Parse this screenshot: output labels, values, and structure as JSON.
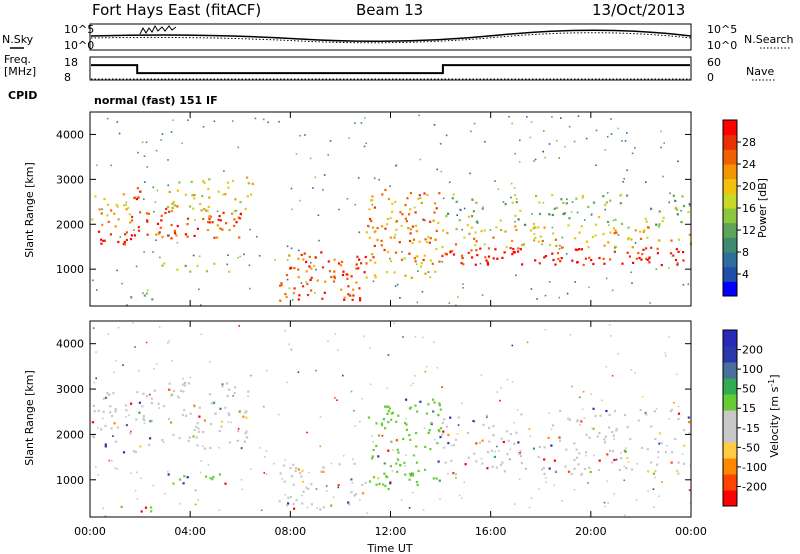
{
  "header": {
    "station": "Fort Hays East (fitACF)",
    "beam": "Beam 13",
    "date": "13/Oct/2013"
  },
  "noise_panel": {
    "left_label": "N.Sky",
    "right_label": "N.Search",
    "left_ticks": [
      "10^5",
      "10^0"
    ],
    "right_ticks": [
      "10^5",
      "10^0"
    ]
  },
  "freq_panel": {
    "left_label_1": "Freq.",
    "left_label_2": "[MHz]",
    "right_label": "Nave",
    "left_ticks": [
      "18",
      "8"
    ],
    "right_ticks": [
      "60",
      "0"
    ],
    "freq_mhz": [
      {
        "t": 0,
        "v": 14.6
      },
      {
        "t": 1.85,
        "v": 14.6
      },
      {
        "t": 1.85,
        "v": 10.8
      },
      {
        "t": 14.1,
        "v": 10.8
      },
      {
        "t": 14.1,
        "v": 14.6
      },
      {
        "t": 24,
        "v": 14.6
      }
    ],
    "nave_ref": 0
  },
  "cpid": {
    "label": "CPID",
    "value": "normal (fast) 151 IF"
  },
  "chart_data": [
    {
      "type": "heatmap",
      "name": "power",
      "ylabel": "Slant Range [km]",
      "xlabel": "",
      "xlim": [
        0,
        24
      ],
      "ylim": [
        180,
        4500
      ],
      "yticks": [
        "1000",
        "2000",
        "3000",
        "4000"
      ],
      "colorbar": {
        "label": "Power [dB]",
        "ticks": [
          "4",
          "8",
          "12",
          "16",
          "20",
          "24",
          "28"
        ],
        "colors": [
          "#0000ff",
          "#1f4faa",
          "#2e6e9c",
          "#3f8a6e",
          "#5fa25a",
          "#8ec63f",
          "#c9d92a",
          "#f2c00f",
          "#f49400",
          "#f06000",
          "#e83000",
          "#ff0000"
        ]
      },
      "echo_regions": [
        {
          "start": 0,
          "end": 1.6,
          "r1": 1500,
          "r2": 1900,
          "level": 0.95
        },
        {
          "start": 0,
          "end": 1.6,
          "r1": 1900,
          "r2": 2700,
          "level": 0.7
        },
        {
          "start": 1.6,
          "end": 2.0,
          "r1": 1800,
          "r2": 3000,
          "level": 0.85
        },
        {
          "start": 1.7,
          "end": 6.0,
          "r1": 1700,
          "r2": 2400,
          "level": 0.85
        },
        {
          "start": 3.0,
          "end": 6.5,
          "r1": 2300,
          "r2": 3100,
          "level": 0.6
        },
        {
          "start": 2.8,
          "end": 5.8,
          "r1": 900,
          "r2": 1150,
          "level": 0.5
        },
        {
          "start": 1.0,
          "end": 2.5,
          "r1": 300,
          "r2": 500,
          "level": 0.5
        },
        {
          "start": 7.5,
          "end": 11.0,
          "r1": 300,
          "r2": 1400,
          "level": 0.85
        },
        {
          "start": 11.0,
          "end": 14.0,
          "r1": 800,
          "r2": 2800,
          "level": 0.75
        },
        {
          "start": 14.0,
          "end": 24.0,
          "r1": 1100,
          "r2": 1500,
          "level": 0.98
        },
        {
          "start": 14.0,
          "end": 24.0,
          "r1": 1500,
          "r2": 2000,
          "level": 0.65
        },
        {
          "start": 14.0,
          "end": 24.0,
          "r1": 2000,
          "r2": 2700,
          "level": 0.45
        }
      ]
    },
    {
      "type": "heatmap",
      "name": "velocity",
      "ylabel": "Slant Range [km]",
      "xlabel": "Time UT",
      "xlim": [
        0,
        24
      ],
      "ylim": [
        180,
        4500
      ],
      "yticks": [
        "1000",
        "2000",
        "3000",
        "4000"
      ],
      "xticks": [
        "00:00",
        "04:00",
        "08:00",
        "12:00",
        "16:00",
        "20:00",
        "00:00"
      ],
      "colorbar": {
        "label_main": "Velocity [m s",
        "label_exp": "-1",
        "label_end": "]",
        "ticks": [
          "-200",
          "-100",
          "-50",
          "-15",
          "15",
          "50",
          "100",
          "200"
        ],
        "colors": [
          "#ff0000",
          "#ff4400",
          "#ff8800",
          "#ffcc44",
          "#c8c8c8",
          "#c8c8c8",
          "#66cc33",
          "#33aa55",
          "#4a6f9a",
          "#2a3aaa",
          "#2a2ab8"
        ]
      },
      "echo_regions": [
        {
          "start": 0,
          "end": 2.0,
          "r1": 1600,
          "r2": 3000,
          "level": 0.55
        },
        {
          "start": 2.0,
          "end": 6.3,
          "r1": 1700,
          "r2": 3200,
          "level": 0.55
        },
        {
          "start": 3.0,
          "end": 5.8,
          "r1": 900,
          "r2": 1150,
          "level": 0.7
        },
        {
          "start": 1.0,
          "end": 2.5,
          "r1": 300,
          "r2": 500,
          "level": 0.7
        },
        {
          "start": 7.5,
          "end": 11.0,
          "r1": 300,
          "r2": 1400,
          "level": 0.5
        },
        {
          "start": 11.0,
          "end": 14.0,
          "r1": 800,
          "r2": 2800,
          "level": 0.7
        },
        {
          "start": 14.0,
          "end": 24.0,
          "r1": 1100,
          "r2": 1900,
          "level": 0.5
        },
        {
          "start": 14.0,
          "end": 24.0,
          "r1": 1900,
          "r2": 2600,
          "level": 0.4
        }
      ]
    }
  ]
}
